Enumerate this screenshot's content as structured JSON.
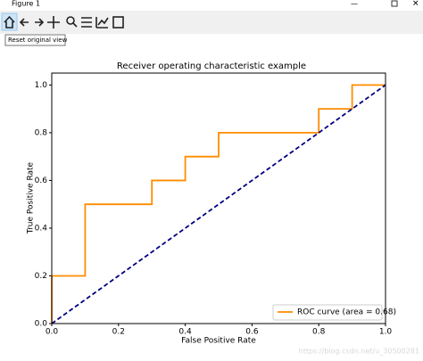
{
  "window": {
    "title": "Figure 1",
    "tooltip": "Reset original view",
    "watermark": "https://blog.csdn.net/u_30500281"
  },
  "chart_data": {
    "type": "line",
    "title": "Receiver operating characteristic example",
    "xlabel": "False Positive Rate",
    "ylabel": "True Positive Rate",
    "xlim": [
      0,
      1
    ],
    "ylim": [
      0,
      1.05
    ],
    "xticks": [
      {
        "value": 0,
        "label": "0.0"
      },
      0.2,
      0.4,
      0.6,
      0.8,
      {
        "value": 1,
        "label": "1.0"
      }
    ],
    "yticks": [
      {
        "value": 0,
        "label": "0.0"
      },
      0.2,
      0.4,
      0.6,
      0.8,
      {
        "value": 1,
        "label": "1.0"
      }
    ],
    "legend": "lower right",
    "series": [
      {
        "name": "ROC curve (area = 0.68)",
        "color": "#ff8c00",
        "style": "solid",
        "x": [
          0,
          0,
          0.1,
          0.1,
          0.3,
          0.3,
          0.4,
          0.4,
          0.5,
          0.5,
          0.8,
          0.8,
          0.9,
          0.9,
          1
        ],
        "values": [
          0,
          0.2,
          0.2,
          0.5,
          0.5,
          0.6,
          0.6,
          0.7,
          0.7,
          0.8,
          0.8,
          0.9,
          0.9,
          1,
          1
        ]
      },
      {
        "color": "#000080",
        "style": "dashed",
        "x": [
          0,
          1
        ],
        "values": [
          0,
          1
        ]
      }
    ]
  }
}
